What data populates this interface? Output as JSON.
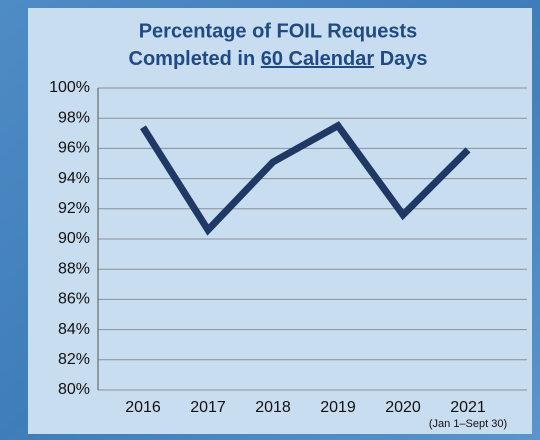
{
  "chart_data": {
    "type": "line",
    "title": {
      "line1": "Percentage of FOIL Requests",
      "line2_before": "Completed in",
      "line2_underlined": "60 Calendar",
      "line2_after": "Days"
    },
    "categories": [
      "2016",
      "2017",
      "2018",
      "2019",
      "2020",
      "2021"
    ],
    "annotation": "(Jan 1–Sept 30)",
    "values": [
      97.4,
      90.6,
      95.1,
      97.5,
      91.6,
      95.9
    ],
    "color": "#1f3864",
    "ylim": [
      80,
      100
    ],
    "yticks": [
      {
        "value": 80,
        "label": "80%"
      },
      {
        "value": 82,
        "label": "82%"
      },
      {
        "value": 84,
        "label": "84%"
      },
      {
        "value": 86,
        "label": "86%"
      },
      {
        "value": 88,
        "label": "88%"
      },
      {
        "value": 90,
        "label": "90%"
      },
      {
        "value": 92,
        "label": "92%"
      },
      {
        "value": 94,
        "label": "94%"
      },
      {
        "value": 96,
        "label": "96%"
      },
      {
        "value": 98,
        "label": "98%"
      },
      {
        "value": 100,
        "label": "100%"
      }
    ],
    "grid": true
  }
}
